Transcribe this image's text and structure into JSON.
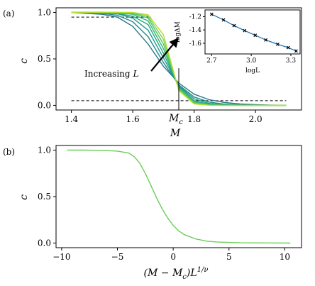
{
  "chart_data": [
    {
      "panel_label": "(a)",
      "type": "line",
      "xlabel": "M",
      "ylabel": "c",
      "xlim": [
        1.35,
        2.15
      ],
      "ylim": [
        -0.05,
        1.05
      ],
      "xticks": [
        "1.4",
        "1.6",
        "1.8",
        "2.0"
      ],
      "yticks": [
        "0.0",
        "0.5",
        "1.0"
      ],
      "x": [
        1.4,
        1.45,
        1.5,
        1.55,
        1.6,
        1.65,
        1.7,
        1.75,
        1.8,
        1.85,
        1.9,
        1.95,
        2.0,
        2.05,
        2.1
      ],
      "series": [
        {
          "values": [
            1.0,
            0.99,
            0.98,
            0.95,
            0.85,
            0.66,
            0.42,
            0.24,
            0.12,
            0.06,
            0.03,
            0.015,
            0.007,
            0.003,
            0.001
          ]
        },
        {
          "values": [
            1.0,
            0.995,
            0.99,
            0.97,
            0.9,
            0.74,
            0.46,
            0.22,
            0.09,
            0.035,
            0.013,
            0.005,
            0.002,
            0.001,
            0.0
          ]
        },
        {
          "values": [
            1.0,
            1.0,
            0.995,
            0.985,
            0.94,
            0.81,
            0.51,
            0.21,
            0.07,
            0.02,
            0.006,
            0.002,
            0.0,
            0.0,
            0.0
          ]
        },
        {
          "values": [
            1.0,
            1.0,
            1.0,
            0.99,
            0.96,
            0.87,
            0.56,
            0.2,
            0.05,
            0.012,
            0.003,
            0.001,
            0.0,
            0.0,
            0.0
          ]
        },
        {
          "values": [
            1.0,
            1.0,
            1.0,
            0.995,
            0.98,
            0.91,
            0.61,
            0.19,
            0.04,
            0.007,
            0.001,
            0.0,
            0.0,
            0.0,
            0.0
          ]
        },
        {
          "values": [
            1.0,
            1.0,
            1.0,
            1.0,
            0.99,
            0.94,
            0.66,
            0.18,
            0.03,
            0.004,
            0.0,
            0.0,
            0.0,
            0.0,
            0.0
          ]
        },
        {
          "values": [
            1.0,
            1.0,
            1.0,
            1.0,
            0.995,
            0.96,
            0.71,
            0.17,
            0.02,
            0.002,
            0.0,
            0.0,
            0.0,
            0.0,
            0.0
          ]
        },
        {
          "values": [
            1.0,
            1.0,
            1.0,
            1.0,
            1.0,
            0.975,
            0.76,
            0.16,
            0.015,
            0.001,
            0.0,
            0.0,
            0.0,
            0.0,
            0.0
          ]
        }
      ],
      "series_colors": [
        "#2a788e",
        "#23898e",
        "#1f9a8a",
        "#22a884",
        "#35b779",
        "#54c568",
        "#7ad151",
        "#b5de2b"
      ],
      "hlines": [
        {
          "y": 0.95,
          "x_range": [
            1.4,
            1.66
          ],
          "style": "dashed"
        },
        {
          "y": 0.05,
          "x_range": [
            1.4,
            2.1
          ],
          "style": "dashed"
        }
      ],
      "vline": {
        "x": 1.75,
        "y_range": [
          0.0,
          0.4
        ]
      },
      "vline_label": "M",
      "vline_label_sub": "c",
      "annotation": "Increasing",
      "annotation_var": "L",
      "arrow": {
        "from": [
          1.66,
          0.37
        ],
        "to": [
          1.74,
          0.69
        ]
      },
      "inset": {
        "type": "line",
        "xlabel": "logL",
        "ylabel": "logΔM",
        "xlim": [
          2.65,
          3.37
        ],
        "ylim": [
          -1.76,
          -1.1
        ],
        "xticks": [
          "2.7",
          "3.0",
          "3.3"
        ],
        "yticks": [
          "-1.2",
          "-1.4",
          "-1.6"
        ],
        "x": [
          2.7,
          2.79,
          2.87,
          2.95,
          3.03,
          3.11,
          3.2,
          3.28,
          3.34
        ],
        "y": [
          -1.165,
          -1.25,
          -1.335,
          -1.41,
          -1.48,
          -1.55,
          -1.615,
          -1.665,
          -1.715
        ],
        "color": "#1f77b4"
      }
    },
    {
      "panel_label": "(b)",
      "type": "line",
      "xlabel": "(M − M",
      "xlabel_sub": "c",
      "xlabel_tail": ")L",
      "xlabel_sup": "1/ν",
      "ylabel": "c",
      "xlim": [
        -10.5,
        11.5
      ],
      "ylim": [
        -0.05,
        1.05
      ],
      "xticks": [
        "−10",
        "−5",
        "0",
        "5",
        "10"
      ],
      "yticks": [
        "0.0",
        "0.5",
        "1.0"
      ],
      "x": [
        -9.5,
        -8,
        -6,
        -5,
        -4,
        -3.5,
        -3,
        -2.5,
        -2,
        -1.5,
        -1,
        -0.5,
        0,
        0.5,
        1,
        2,
        3,
        4,
        6,
        8,
        10.5
      ],
      "series": [
        {
          "values": [
            1.0,
            1.0,
            0.995,
            0.99,
            0.97,
            0.93,
            0.86,
            0.75,
            0.62,
            0.49,
            0.37,
            0.27,
            0.19,
            0.13,
            0.09,
            0.045,
            0.02,
            0.01,
            0.003,
            0.001,
            0.0
          ]
        }
      ],
      "series_colors": [
        "#6ccd5a"
      ]
    }
  ]
}
